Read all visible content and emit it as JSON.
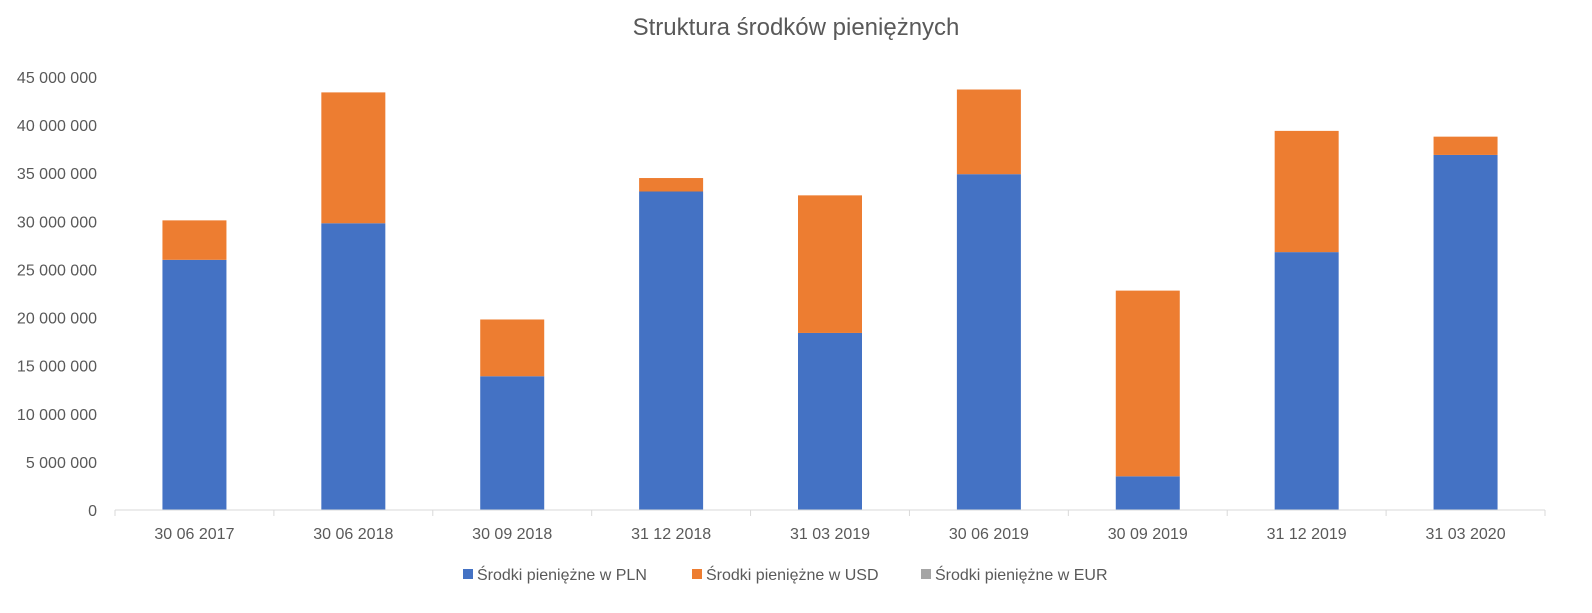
{
  "chart_data": {
    "type": "bar",
    "stacked": true,
    "title": "Struktura środków pieniężnych",
    "categories": [
      "30 06 2017",
      "30 06 2018",
      "30 09 2018",
      "31 12 2018",
      "31 03 2019",
      "30 06 2019",
      "30 09 2019",
      "31 12 2019",
      "31 03 2020"
    ],
    "series": [
      {
        "name": "Środki pieniężne w PLN",
        "color": "#4472C4",
        "values": [
          26000000,
          29800000,
          13900000,
          33100000,
          18400000,
          34900000,
          3500000,
          26800000,
          36900000
        ]
      },
      {
        "name": "Środki pieniężne w USD",
        "color": "#ED7D31",
        "values": [
          4100000,
          13600000,
          5900000,
          1400000,
          14300000,
          8800000,
          19300000,
          12600000,
          1900000
        ]
      },
      {
        "name": "Środki pieniężne w EUR",
        "color": "#A5A5A5",
        "values": [
          0,
          0,
          0,
          0,
          0,
          0,
          0,
          0,
          0
        ]
      }
    ],
    "ylim": [
      0,
      45000000
    ],
    "yticks": [
      "0",
      "5 000 000",
      "10 000 000",
      "15 000 000",
      "20 000 000",
      "25 000 000",
      "30 000 000",
      "35 000 000",
      "40 000 000",
      "45 000 000"
    ],
    "grid": false,
    "legend": "bottom"
  }
}
